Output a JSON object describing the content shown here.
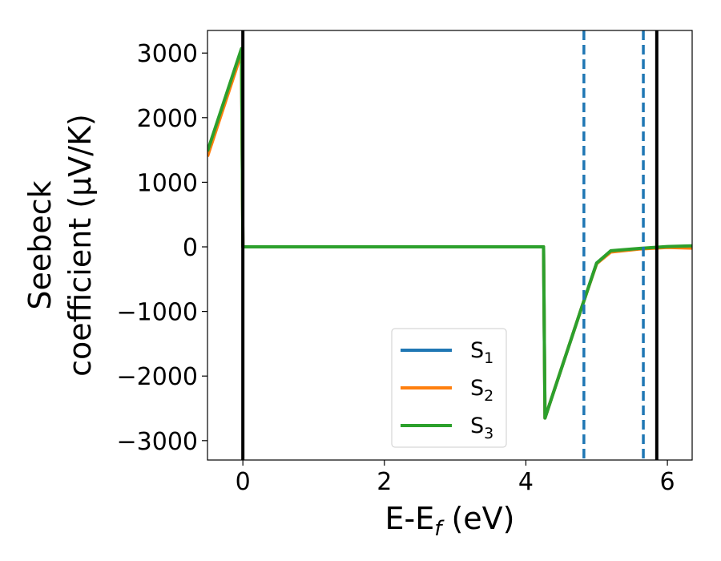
{
  "chart_data": {
    "type": "line",
    "title": "",
    "xlabel": {
      "main": "E-E",
      "sub": "f",
      "tail": " (eV)"
    },
    "ylabel": {
      "line1": "Seebeck",
      "line2": "coefficient  (μV/K)"
    },
    "xlim": [
      -0.5,
      6.35
    ],
    "ylim": [
      -3300,
      3350
    ],
    "xticks": [
      0,
      2,
      4,
      6
    ],
    "yticks": [
      3000,
      2000,
      1000,
      0,
      -1000,
      -2000,
      -3000
    ],
    "ytick_labels": [
      "3000",
      "2000",
      "1000",
      "0",
      "−1000",
      "−2000",
      "−3000"
    ],
    "grid": false,
    "legend_position": "lower-center",
    "colors": {
      "S1": "#1f77b4",
      "S2": "#ff7f0e",
      "S3": "#2ca02c",
      "black": "#000000"
    },
    "series": [
      {
        "name": "S",
        "sub": "1",
        "color": "#1f77b4",
        "x": [
          -0.5,
          -0.02,
          0.0,
          4.25,
          4.27,
          4.8,
          5.0,
          5.2,
          5.6,
          6.0,
          6.35
        ],
        "y": [
          1450,
          3050,
          0,
          0,
          -2650,
          -900,
          -250,
          -70,
          -30,
          0,
          10
        ]
      },
      {
        "name": "S",
        "sub": "2",
        "color": "#ff7f0e",
        "x": [
          -0.5,
          -0.02,
          0.0,
          4.25,
          4.27,
          4.8,
          5.0,
          5.2,
          5.6,
          6.0,
          6.35
        ],
        "y": [
          1400,
          3000,
          0,
          0,
          -2650,
          -900,
          -260,
          -80,
          -35,
          -10,
          -20
        ]
      },
      {
        "name": "S",
        "sub": "3",
        "color": "#2ca02c",
        "x": [
          -0.5,
          -0.02,
          0.0,
          4.25,
          4.27,
          4.8,
          5.0,
          5.2,
          5.6,
          6.0,
          6.35
        ],
        "y": [
          1480,
          3070,
          0,
          0,
          -2650,
          -900,
          -250,
          -60,
          -25,
          5,
          15
        ]
      }
    ],
    "vlines": [
      {
        "x": 0.0,
        "style": "solid",
        "color": "#000000"
      },
      {
        "x": 4.82,
        "style": "dashed",
        "color": "#1f77b4"
      },
      {
        "x": 5.66,
        "style": "dashed",
        "color": "#1f77b4"
      },
      {
        "x": 5.85,
        "style": "solid",
        "color": "#000000"
      }
    ]
  }
}
